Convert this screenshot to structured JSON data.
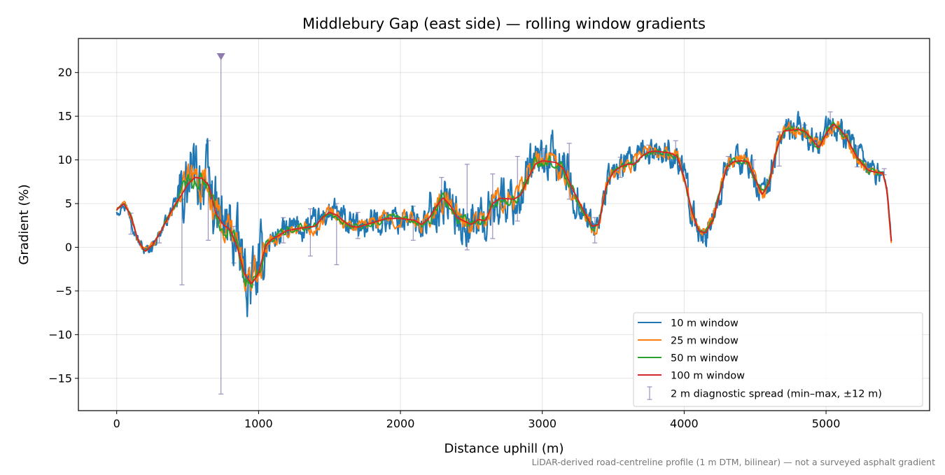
{
  "chart_data": {
    "type": "line",
    "title": "Middlebury Gap (east side) — rolling window gradients",
    "xlabel": "Distance uphill (m)",
    "ylabel": "Gradient (%)",
    "xlim": [
      -270,
      5730
    ],
    "ylim": [
      -18.7,
      23.9
    ],
    "xticks": [
      0,
      1000,
      2000,
      3000,
      4000,
      5000
    ],
    "xtick_labels": [
      "0",
      "1000",
      "2000",
      "3000",
      "4000",
      "5000"
    ],
    "yticks": [
      -15,
      -10,
      -5,
      0,
      5,
      10,
      15,
      20
    ],
    "ytick_labels": [
      "−15",
      "−10",
      "−5",
      "0",
      "5",
      "10",
      "15",
      "20"
    ],
    "grid": true,
    "legend_position": "lower right",
    "footnote": "LiDAR-derived road-centreline profile (1 m DTM, bilinear) — not a surveyed asphalt gradient",
    "base_profile": [
      [
        0,
        4.3
      ],
      [
        50,
        5.0
      ],
      [
        100,
        3.6
      ],
      [
        150,
        0.8
      ],
      [
        200,
        -0.5
      ],
      [
        250,
        0.2
      ],
      [
        300,
        1.5
      ],
      [
        350,
        3.0
      ],
      [
        400,
        4.6
      ],
      [
        450,
        5.8
      ],
      [
        500,
        7.2
      ],
      [
        550,
        8.0
      ],
      [
        600,
        7.9
      ],
      [
        650,
        7.1
      ],
      [
        700,
        3.8
      ],
      [
        750,
        2.6
      ],
      [
        800,
        2.0
      ],
      [
        850,
        0.0
      ],
      [
        900,
        -3.0
      ],
      [
        950,
        -4.2
      ],
      [
        1000,
        -3.0
      ],
      [
        1050,
        0.2
      ],
      [
        1100,
        1.0
      ],
      [
        1150,
        1.4
      ],
      [
        1200,
        1.9
      ],
      [
        1300,
        2.2
      ],
      [
        1400,
        2.4
      ],
      [
        1450,
        3.4
      ],
      [
        1500,
        4.0
      ],
      [
        1550,
        3.7
      ],
      [
        1600,
        3.0
      ],
      [
        1650,
        2.4
      ],
      [
        1700,
        2.3
      ],
      [
        1800,
        2.8
      ],
      [
        1900,
        3.3
      ],
      [
        2000,
        3.3
      ],
      [
        2100,
        3.1
      ],
      [
        2150,
        2.6
      ],
      [
        2200,
        3.3
      ],
      [
        2250,
        4.6
      ],
      [
        2300,
        5.7
      ],
      [
        2350,
        4.8
      ],
      [
        2400,
        3.4
      ],
      [
        2500,
        2.6
      ],
      [
        2550,
        3.2
      ],
      [
        2600,
        3.0
      ],
      [
        2650,
        5.0
      ],
      [
        2700,
        5.6
      ],
      [
        2800,
        5.5
      ],
      [
        2850,
        6.0
      ],
      [
        2900,
        7.9
      ],
      [
        2950,
        9.5
      ],
      [
        3000,
        9.9
      ],
      [
        3100,
        9.7
      ],
      [
        3150,
        9.0
      ],
      [
        3200,
        7.1
      ],
      [
        3250,
        5.5
      ],
      [
        3300,
        3.9
      ],
      [
        3350,
        2.4
      ],
      [
        3400,
        2.6
      ],
      [
        3450,
        7.0
      ],
      [
        3500,
        8.6
      ],
      [
        3550,
        9.2
      ],
      [
        3600,
        9.5
      ],
      [
        3650,
        9.5
      ],
      [
        3700,
        10.4
      ],
      [
        3750,
        10.9
      ],
      [
        3800,
        11.0
      ],
      [
        3900,
        10.8
      ],
      [
        3950,
        10.4
      ],
      [
        4000,
        8.0
      ],
      [
        4050,
        4.4
      ],
      [
        4100,
        1.9
      ],
      [
        4150,
        1.6
      ],
      [
        4200,
        3.0
      ],
      [
        4250,
        6.1
      ],
      [
        4300,
        9.2
      ],
      [
        4350,
        9.8
      ],
      [
        4400,
        9.9
      ],
      [
        4450,
        9.8
      ],
      [
        4500,
        7.8
      ],
      [
        4550,
        6.0
      ],
      [
        4600,
        7.4
      ],
      [
        4650,
        11.2
      ],
      [
        4700,
        13.3
      ],
      [
        4800,
        13.5
      ],
      [
        4850,
        13.3
      ],
      [
        4900,
        12.4
      ],
      [
        4950,
        11.3
      ],
      [
        5000,
        13.0
      ],
      [
        5050,
        14.1
      ],
      [
        5100,
        13.5
      ],
      [
        5150,
        12.4
      ],
      [
        5200,
        10.8
      ],
      [
        5250,
        9.6
      ],
      [
        5300,
        8.8
      ],
      [
        5350,
        8.6
      ],
      [
        5400,
        8.5
      ],
      [
        5430,
        6.6
      ],
      [
        5460,
        0.7
      ]
    ],
    "series": [
      {
        "name": "10 m window",
        "color": "#1f77b4",
        "noise_amplitude": 1.6
      },
      {
        "name": "25 m window",
        "color": "#ff7f0e",
        "noise_amplitude": 0.85
      },
      {
        "name": "50 m window",
        "color": "#2ca02c",
        "noise_amplitude": 0.45
      },
      {
        "name": "100 m window",
        "color": "#d62728",
        "noise_amplitude": 0.0
      }
    ],
    "errorbar_series": {
      "name": "2 m diagnostic spread (min–max, ±12 m)",
      "color": "#9893bd",
      "points": [
        {
          "x": 100,
          "lo": 1.5,
          "hi": 3.9
        },
        {
          "x": 300,
          "lo": 0.5,
          "hi": 1.4
        },
        {
          "x": 460,
          "lo": -4.3,
          "hi": 5.5
        },
        {
          "x": 645,
          "lo": 0.8,
          "hi": 12.2
        },
        {
          "x": 735,
          "lo": -16.8,
          "hi": 21.9
        },
        {
          "x": 825,
          "lo": -1.8,
          "hi": 2.4
        },
        {
          "x": 955,
          "lo": -4.3,
          "hi": -1.8
        },
        {
          "x": 1175,
          "lo": 0.5,
          "hi": 3.4
        },
        {
          "x": 1365,
          "lo": -1.0,
          "hi": 4.4
        },
        {
          "x": 1550,
          "lo": -2.0,
          "hi": 5.0
        },
        {
          "x": 1700,
          "lo": 1.0,
          "hi": 4.0
        },
        {
          "x": 1900,
          "lo": 2.7,
          "hi": 4.0
        },
        {
          "x": 2090,
          "lo": 0.8,
          "hi": 4.7
        },
        {
          "x": 2290,
          "lo": 4.0,
          "hi": 8.0
        },
        {
          "x": 2470,
          "lo": -0.3,
          "hi": 9.5
        },
        {
          "x": 2650,
          "lo": 1.0,
          "hi": 8.4
        },
        {
          "x": 2825,
          "lo": 3.0,
          "hi": 10.4
        },
        {
          "x": 3010,
          "lo": 9.0,
          "hi": 11.3
        },
        {
          "x": 3190,
          "lo": 5.5,
          "hi": 11.9
        },
        {
          "x": 3370,
          "lo": 0.5,
          "hi": 3.4
        },
        {
          "x": 3550,
          "lo": 8.0,
          "hi": 10.3
        },
        {
          "x": 3750,
          "lo": 10.3,
          "hi": 11.7
        },
        {
          "x": 3940,
          "lo": 10.0,
          "hi": 12.2
        },
        {
          "x": 4130,
          "lo": 0.7,
          "hi": 2.0
        },
        {
          "x": 4310,
          "lo": 9.0,
          "hi": 10.4
        },
        {
          "x": 4490,
          "lo": 8.0,
          "hi": 10.0
        },
        {
          "x": 4670,
          "lo": 9.3,
          "hi": 13.2
        },
        {
          "x": 4850,
          "lo": 12.7,
          "hi": 14.0
        },
        {
          "x": 5030,
          "lo": 13.0,
          "hi": 15.5
        },
        {
          "x": 5220,
          "lo": 9.2,
          "hi": 11.6
        },
        {
          "x": 5410,
          "lo": 8.3,
          "hi": 9.0
        }
      ]
    }
  }
}
